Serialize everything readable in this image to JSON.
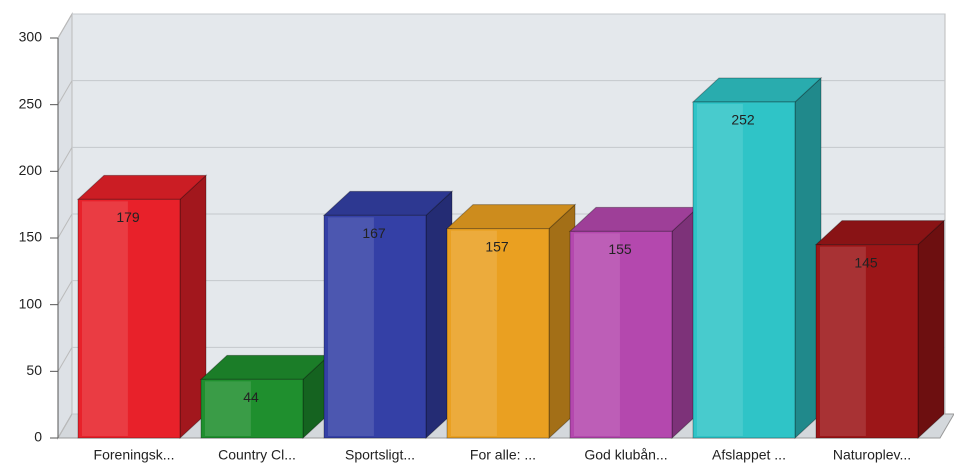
{
  "chart_data": {
    "type": "bar3d",
    "categories": [
      "Foreningsk...",
      "Country Cl...",
      "Sportsligt...",
      "For alle: ...",
      "God klubån...",
      "Afslappet ...",
      "Naturoplev..."
    ],
    "values": [
      179,
      44,
      167,
      157,
      155,
      252,
      145
    ],
    "colors": [
      "#e8212a",
      "#1f8f2e",
      "#3440a6",
      "#eaa021",
      "#b448ae",
      "#2fc4c7",
      "#9c1618"
    ],
    "ylim": [
      0,
      300
    ],
    "yticks": [
      0,
      50,
      100,
      150,
      200,
      250,
      300
    ],
    "grid": true
  }
}
